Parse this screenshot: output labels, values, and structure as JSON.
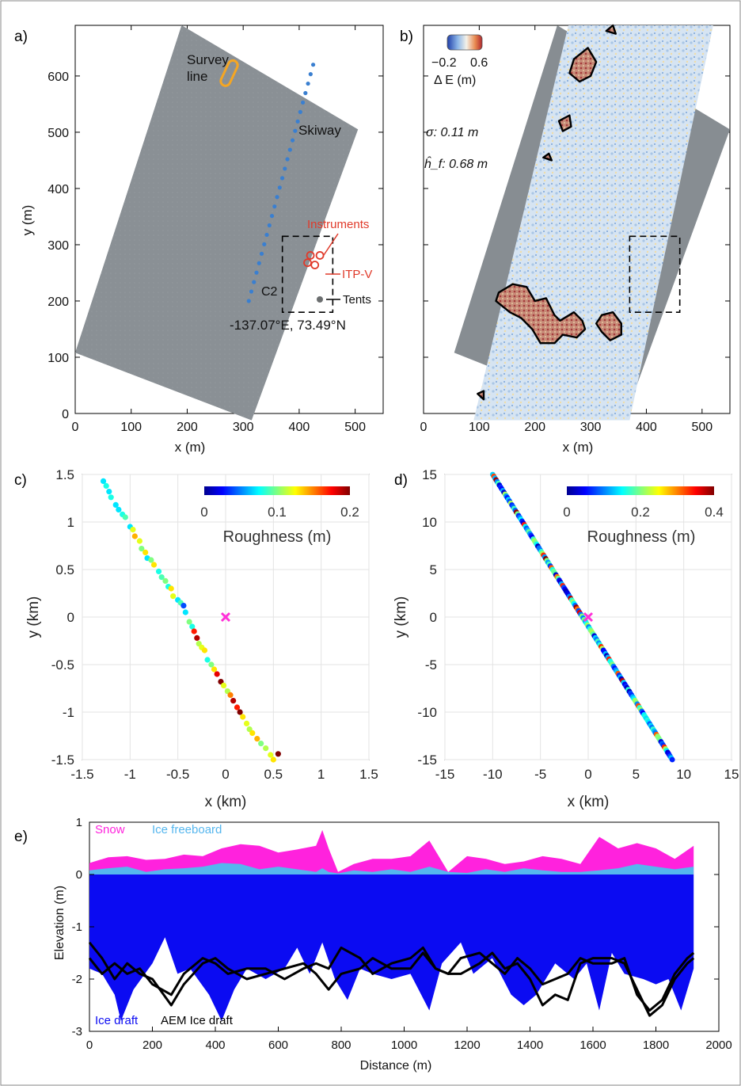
{
  "figure": {
    "panels": [
      "a)",
      "b)",
      "c)",
      "d)",
      "e)"
    ]
  },
  "chart_data": [
    {
      "id": "a",
      "type": "scatter",
      "xlabel": "x (m)",
      "ylabel": "y (m)",
      "xlim": [
        0,
        550
      ],
      "ylim": [
        0,
        690
      ],
      "xticks": [
        "0",
        "100",
        "200",
        "300",
        "400",
        "500"
      ],
      "yticks": [
        "0",
        "100",
        "200",
        "300",
        "400",
        "500",
        "600"
      ],
      "image_corners": [
        [
          0,
          108
        ],
        [
          315,
          -12
        ],
        [
          505,
          505
        ],
        [
          190,
          690
        ]
      ],
      "skiway_start": [
        310,
        200
      ],
      "skiway_end": [
        425,
        620
      ],
      "skiway_points": 26,
      "annotations": {
        "survey": "Survey\nline",
        "skiway": "Skiway",
        "instruments": "Instruments",
        "itp": "ITP-V",
        "camp": "C2",
        "tents": "Tents",
        "location": "-137.07°E, 73.49°N"
      },
      "survey_line_color": "#f5a623",
      "skiway_color": "#3a7fd0",
      "instrument_color": "#e03a2a"
    },
    {
      "id": "b",
      "type": "heatmap",
      "xlabel": "x (m)",
      "xlim": [
        0,
        550
      ],
      "ylim": [
        0,
        690
      ],
      "xticks": [
        "0",
        "100",
        "200",
        "300",
        "400",
        "500"
      ],
      "colorbar": {
        "min_label": "−0.2",
        "max_label": "0.6",
        "label": "Δ E (m)"
      },
      "stats": {
        "sigma": "σ: 0.11 m",
        "hf": "ĥ_f: 0.68 m"
      },
      "ridges": [
        [
          [
            135,
            215
          ],
          [
            160,
            230
          ],
          [
            185,
            225
          ],
          [
            200,
            200
          ],
          [
            220,
            205
          ],
          [
            235,
            175
          ],
          [
            245,
            165
          ],
          [
            270,
            180
          ],
          [
            285,
            165
          ],
          [
            290,
            150
          ],
          [
            275,
            135
          ],
          [
            250,
            140
          ],
          [
            235,
            125
          ],
          [
            210,
            125
          ],
          [
            195,
            150
          ],
          [
            175,
            170
          ],
          [
            155,
            180
          ],
          [
            130,
            200
          ]
        ],
        [
          [
            320,
            175
          ],
          [
            340,
            180
          ],
          [
            355,
            160
          ],
          [
            355,
            140
          ],
          [
            335,
            130
          ],
          [
            320,
            145
          ],
          [
            310,
            160
          ]
        ],
        [
          [
            270,
            630
          ],
          [
            295,
            650
          ],
          [
            310,
            625
          ],
          [
            300,
            600
          ],
          [
            280,
            590
          ],
          [
            262,
            605
          ]
        ],
        [
          [
            243,
            520
          ],
          [
            262,
            530
          ],
          [
            265,
            510
          ],
          [
            250,
            502
          ]
        ],
        [
          [
            215,
            455
          ],
          [
            225,
            462
          ],
          [
            230,
            450
          ]
        ],
        [
          [
            328,
            680
          ],
          [
            340,
            690
          ],
          [
            345,
            675
          ]
        ],
        [
          [
            97,
            35
          ],
          [
            108,
            40
          ],
          [
            108,
            25
          ]
        ]
      ]
    },
    {
      "id": "c",
      "type": "scatter",
      "xlabel": "x (km)",
      "ylabel": "y (km)",
      "xlim": [
        -1.5,
        1.5
      ],
      "ylim": [
        -1.5,
        1.5
      ],
      "xticks": [
        "-1.5",
        "-1",
        "-0.5",
        "0",
        "0.5",
        "1",
        "1.5"
      ],
      "yticks": [
        "-1.5",
        "-1",
        "-0.5",
        "0",
        "0.5",
        "1",
        "1.5"
      ],
      "colorbar": {
        "label": "Roughness (m)",
        "ticks": [
          "0",
          "0.1",
          "0.2"
        ],
        "max": 0.2
      },
      "center_marker_color": "#ff30d8",
      "x": [
        -1.28,
        -1.25,
        -1.22,
        -1.2,
        -1.15,
        -1.12,
        -1.08,
        -1.05,
        -1.0,
        -0.97,
        -0.95,
        -0.9,
        -0.88,
        -0.84,
        -0.82,
        -0.78,
        -0.75,
        -0.7,
        -0.67,
        -0.63,
        -0.6,
        -0.57,
        -0.55,
        -0.5,
        -0.47,
        -0.44,
        -0.42,
        -0.38,
        -0.35,
        -0.33,
        -0.3,
        -0.28,
        -0.25,
        -0.22,
        -0.19,
        -0.15,
        -0.12,
        -0.09,
        -0.05,
        -0.02,
        0.02,
        0.05,
        0.08,
        0.12,
        0.15,
        0.18,
        0.22,
        0.25,
        0.28,
        0.33,
        0.37,
        0.42,
        0.47,
        0.5,
        0.55
      ],
      "y": [
        1.43,
        1.38,
        1.32,
        1.26,
        1.18,
        1.13,
        1.08,
        1.05,
        0.95,
        0.92,
        0.85,
        0.8,
        0.72,
        0.68,
        0.62,
        0.6,
        0.55,
        0.48,
        0.42,
        0.38,
        0.32,
        0.3,
        0.22,
        0.18,
        0.15,
        0.12,
        0.05,
        -0.05,
        -0.1,
        -0.15,
        -0.22,
        -0.28,
        -0.32,
        -0.35,
        -0.45,
        -0.5,
        -0.55,
        -0.6,
        -0.68,
        -0.72,
        -0.78,
        -0.82,
        -0.88,
        -0.95,
        -1.0,
        -1.05,
        -1.12,
        -1.18,
        -1.22,
        -1.28,
        -1.33,
        -1.38,
        -1.45,
        -1.5,
        -1.44
      ],
      "values": [
        0.07,
        0.08,
        0.07,
        0.08,
        0.07,
        0.07,
        0.08,
        0.09,
        0.07,
        0.12,
        0.14,
        0.12,
        0.1,
        0.13,
        0.07,
        0.1,
        0.13,
        0.08,
        0.09,
        0.1,
        0.08,
        0.13,
        0.12,
        0.07,
        0.09,
        0.04,
        0.07,
        0.1,
        0.08,
        0.17,
        0.19,
        0.11,
        0.12,
        0.13,
        0.08,
        0.1,
        0.13,
        0.18,
        0.2,
        0.12,
        0.11,
        0.15,
        0.19,
        0.17,
        0.2,
        0.13,
        0.12,
        0.11,
        0.13,
        0.14,
        0.1,
        0.11,
        0.12,
        0.13,
        0.22
      ]
    },
    {
      "id": "d",
      "type": "scatter",
      "xlabel": "x (km)",
      "ylabel": "y (km)",
      "xlim": [
        -15,
        15
      ],
      "ylim": [
        -15,
        15
      ],
      "xticks": [
        "-15",
        "-10",
        "-5",
        "0",
        "5",
        "10",
        "15"
      ],
      "yticks": [
        "-15",
        "-10",
        "-5",
        "0",
        "5",
        "10",
        "15"
      ],
      "colorbar": {
        "label": "Roughness (m)",
        "ticks": [
          "0",
          "0.2",
          "0.4"
        ],
        "max": 0.4
      },
      "center_marker_color": "#ff30d8",
      "line_start": [
        -10,
        15
      ],
      "line_end": [
        8.8,
        -15
      ],
      "n_points": 160
    },
    {
      "id": "e",
      "type": "area",
      "xlabel": "Distance (m)",
      "ylabel": "Elevation (m)",
      "xlim": [
        0,
        2000
      ],
      "ylim": [
        -3,
        1
      ],
      "xticks": [
        "0",
        "200",
        "400",
        "600",
        "800",
        "1000",
        "1200",
        "1400",
        "1600",
        "1800",
        "2000"
      ],
      "yticks": [
        "-3",
        "-2",
        "-1",
        "0",
        "1"
      ],
      "legend": {
        "snow": "Snow",
        "freeboard": "Ice freeboard",
        "draft": "Ice draft",
        "aem": "AEM Ice draft"
      },
      "colors": {
        "snow": "#ff22dd",
        "freeboard": "#55b6ee",
        "draft": "#0b0bf2",
        "aem": "#000000"
      },
      "x": [
        0,
        60,
        120,
        180,
        240,
        300,
        360,
        420,
        480,
        540,
        600,
        660,
        720,
        740,
        760,
        790,
        840,
        900,
        960,
        1020,
        1080,
        1140,
        1200,
        1260,
        1320,
        1380,
        1440,
        1500,
        1560,
        1620,
        1680,
        1740,
        1800,
        1860,
        1920
      ],
      "snow_top": [
        0.22,
        0.33,
        0.35,
        0.28,
        0.3,
        0.38,
        0.35,
        0.5,
        0.58,
        0.55,
        0.42,
        0.48,
        0.55,
        0.85,
        0.5,
        0.05,
        0.2,
        0.3,
        0.3,
        0.35,
        0.65,
        0.05,
        0.35,
        0.3,
        0.2,
        0.25,
        0.35,
        0.3,
        0.2,
        0.72,
        0.5,
        0.6,
        0.5,
        0.3,
        0.55
      ],
      "ice_freeboard": [
        0.08,
        0.12,
        0.15,
        0.05,
        0.1,
        0.12,
        0.15,
        0.22,
        0.2,
        0.1,
        0.15,
        0.1,
        0.05,
        0.12,
        0.05,
        0.02,
        0.08,
        0.05,
        0.1,
        0.05,
        0.15,
        0.05,
        0.03,
        0.1,
        0.05,
        0.12,
        0.08,
        0.05,
        0.05,
        0.08,
        0.12,
        0.2,
        0.15,
        0.1,
        0.15
      ],
      "draft_x": [
        0,
        40,
        80,
        100,
        140,
        200,
        240,
        280,
        320,
        380,
        420,
        460,
        500,
        560,
        620,
        660,
        700,
        740,
        780,
        820,
        860,
        900,
        960,
        1020,
        1080,
        1120,
        1180,
        1220,
        1280,
        1340,
        1380,
        1420,
        1480,
        1540,
        1580,
        1620,
        1660,
        1700,
        1760,
        1800,
        1840,
        1880,
        1920
      ],
      "draft_bottom": [
        -1.8,
        -1.9,
        -2.3,
        -2.8,
        -2.2,
        -1.7,
        -1.2,
        -1.9,
        -1.8,
        -2.3,
        -2.8,
        -2.2,
        -1.8,
        -2.0,
        -1.8,
        -1.4,
        -1.9,
        -1.3,
        -2.0,
        -2.4,
        -1.8,
        -1.9,
        -2.0,
        -1.9,
        -2.6,
        -1.7,
        -1.3,
        -1.9,
        -1.6,
        -2.3,
        -2.5,
        -2.3,
        -1.7,
        -2.0,
        -1.7,
        -2.6,
        -1.5,
        -1.9,
        -2.0,
        -2.1,
        -2.0,
        -2.6,
        -1.8
      ],
      "aem1_x": [
        0,
        40,
        80,
        120,
        160,
        200,
        260,
        300,
        360,
        400,
        440,
        500,
        560,
        620,
        680,
        720,
        760,
        800,
        860,
        900,
        960,
        1020,
        1060,
        1100,
        1140,
        1180,
        1240,
        1280,
        1320,
        1360,
        1400,
        1440,
        1480,
        1520,
        1560,
        1600,
        1660,
        1700,
        1740,
        1780,
        1820,
        1860,
        1900,
        1920
      ],
      "aem1": [
        -1.3,
        -1.6,
        -2.0,
        -1.7,
        -1.9,
        -2.0,
        -2.5,
        -2.1,
        -1.7,
        -1.6,
        -1.8,
        -2.0,
        -1.9,
        -1.8,
        -1.7,
        -1.9,
        -2.2,
        -1.9,
        -1.8,
        -1.6,
        -1.8,
        -1.8,
        -1.5,
        -1.8,
        -1.9,
        -1.9,
        -1.7,
        -1.5,
        -1.8,
        -1.7,
        -2.0,
        -2.5,
        -2.3,
        -2.4,
        -1.7,
        -1.6,
        -1.6,
        -1.7,
        -2.2,
        -2.7,
        -2.5,
        -2.0,
        -1.7,
        -1.6
      ],
      "aem2": [
        -1.6,
        -1.9,
        -1.7,
        -1.9,
        -1.8,
        -2.1,
        -2.3,
        -1.9,
        -1.6,
        -1.7,
        -1.9,
        -1.8,
        -1.8,
        -2.0,
        -1.8,
        -1.7,
        -1.8,
        -1.4,
        -1.6,
        -1.9,
        -1.7,
        -1.6,
        -1.4,
        -1.8,
        -1.9,
        -1.6,
        -1.5,
        -1.7,
        -1.9,
        -1.6,
        -1.8,
        -2.1,
        -2.0,
        -1.9,
        -1.6,
        -1.7,
        -1.7,
        -1.6,
        -2.3,
        -2.6,
        -2.4,
        -1.9,
        -1.6,
        -1.5
      ]
    }
  ]
}
